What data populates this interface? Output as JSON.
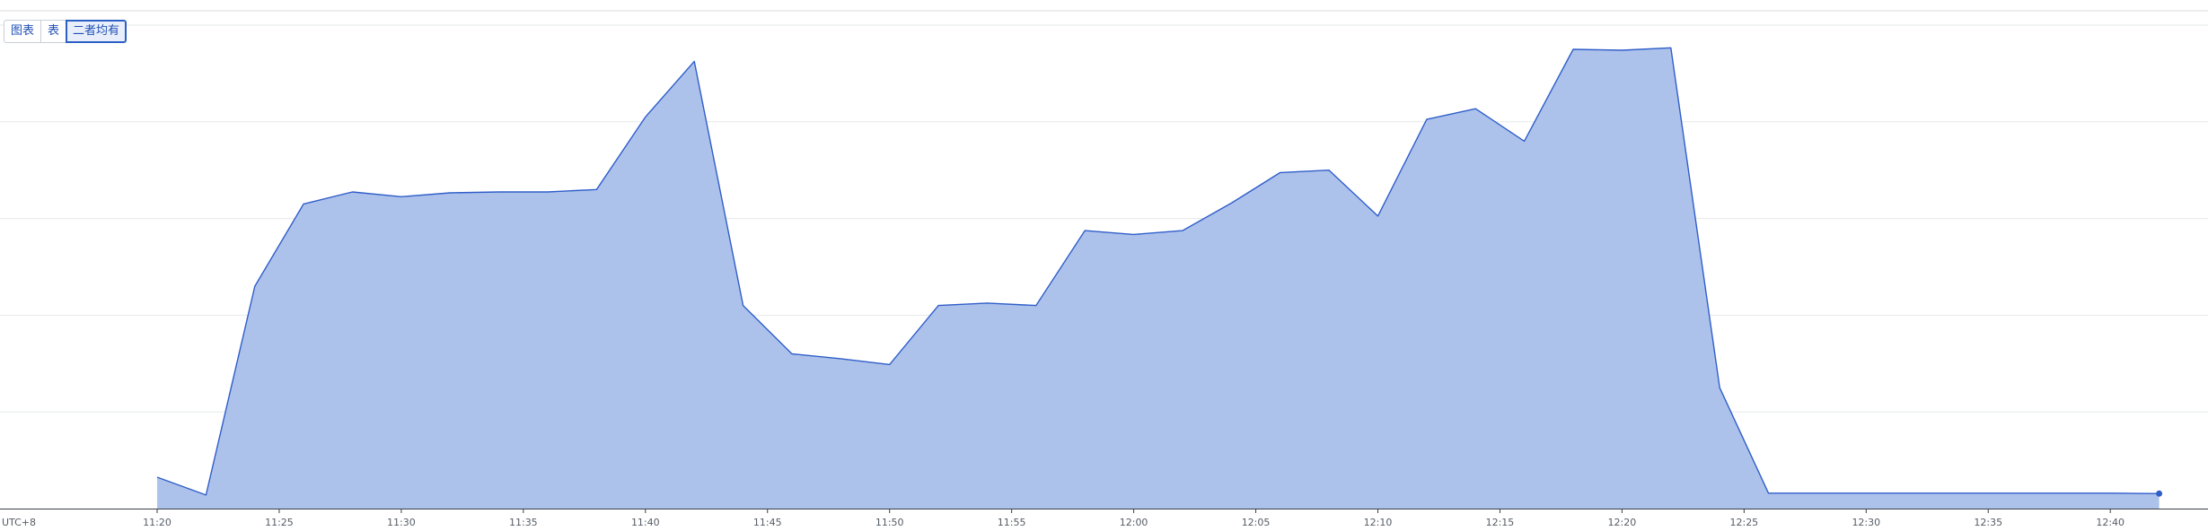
{
  "view_toggle": {
    "options": [
      {
        "label": "图表",
        "active": false
      },
      {
        "label": "表",
        "active": false
      },
      {
        "label": "二者均有",
        "active": true
      }
    ]
  },
  "chart_data": {
    "type": "area",
    "title": "",
    "xlabel": "",
    "ylabel": "",
    "timezone_label": "UTC+8",
    "x_ticks": [
      "11:20",
      "11:25",
      "11:30",
      "11:35",
      "11:40",
      "11:45",
      "11:50",
      "11:55",
      "12:00",
      "12:05",
      "12:10",
      "12:15",
      "12:20",
      "12:25",
      "12:30",
      "12:35",
      "12:40"
    ],
    "x": [
      "11:20",
      "11:22",
      "11:24",
      "11:26",
      "11:28",
      "11:30",
      "11:32",
      "11:34",
      "11:36",
      "11:38",
      "11:40",
      "11:42",
      "11:44",
      "11:46",
      "11:48",
      "11:50",
      "11:52",
      "11:54",
      "11:56",
      "11:58",
      "12:00",
      "12:02",
      "12:04",
      "12:06",
      "12:08",
      "12:10",
      "12:12",
      "12:14",
      "12:16",
      "12:18",
      "12:20",
      "12:22",
      "12:24",
      "12:26",
      "12:28",
      "12:30",
      "12:32",
      "12:34",
      "12:36",
      "12:38",
      "12:40",
      "12:42"
    ],
    "series": [
      {
        "values": [
          0.65,
          0.28,
          4.6,
          6.3,
          6.55,
          6.45,
          6.53,
          6.55,
          6.55,
          6.6,
          8.1,
          9.25,
          4.2,
          3.2,
          3.1,
          2.98,
          4.2,
          4.25,
          4.2,
          5.75,
          5.67,
          5.75,
          6.32,
          6.95,
          7.0,
          6.05,
          8.05,
          8.27,
          7.6,
          9.5,
          9.48,
          9.53,
          2.5,
          0.32,
          0.32,
          0.32,
          0.32,
          0.32,
          0.32,
          0.32,
          0.32,
          0.31
        ]
      }
    ],
    "ylim": [
      0,
      10
    ],
    "y_ticks_labeled": false,
    "grid": "horizontal",
    "colors": {
      "fill": "#adc2eb",
      "line": "#2f5ec9",
      "grid": "#e6e8eb",
      "axis": "#3a3f45"
    }
  }
}
